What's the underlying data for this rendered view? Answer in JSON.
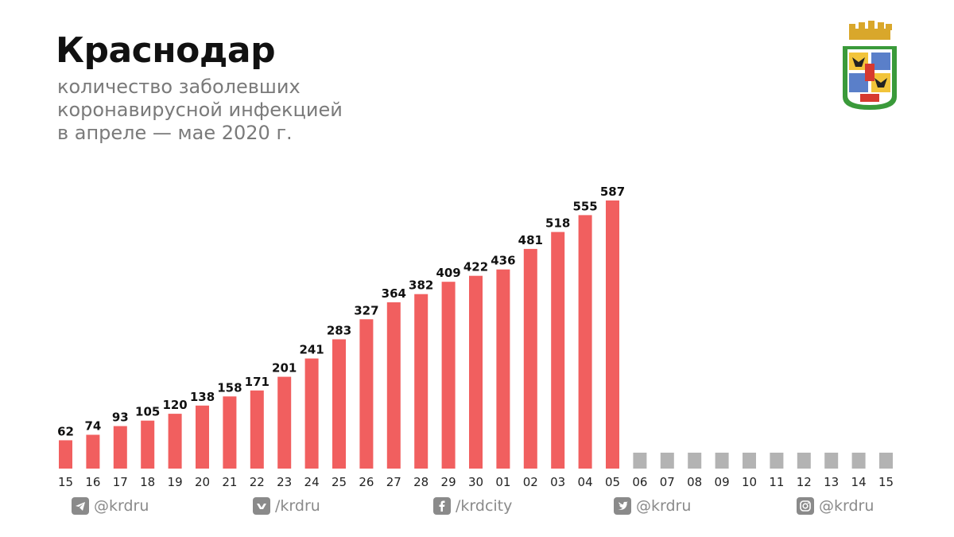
{
  "header": {
    "title": "Краснодар",
    "subtitle_lines": [
      "количество заболевших",
      "коронавирусной инфекцией",
      "в апреле — мае 2020 г."
    ]
  },
  "colors": {
    "bar": "#f15f5f",
    "future_bar": "#b3b3b3",
    "text": "#111111",
    "muted": "#8a8a8a"
  },
  "chart_data": {
    "type": "bar",
    "categories": [
      "15",
      "16",
      "17",
      "18",
      "19",
      "20",
      "21",
      "22",
      "23",
      "24",
      "25",
      "26",
      "27",
      "28",
      "29",
      "30",
      "01",
      "02",
      "03",
      "04",
      "05",
      "06",
      "07",
      "08",
      "09",
      "10",
      "11",
      "12",
      "13",
      "14",
      "15"
    ],
    "values": [
      62,
      74,
      93,
      105,
      120,
      138,
      158,
      171,
      201,
      241,
      283,
      327,
      364,
      382,
      409,
      422,
      436,
      481,
      518,
      555,
      587,
      null,
      null,
      null,
      null,
      null,
      null,
      null,
      null,
      null,
      null
    ],
    "ylim": [
      0,
      587
    ],
    "grid": false
  },
  "socials": [
    {
      "icon": "telegram-icon",
      "label": "@krdru"
    },
    {
      "icon": "vk-icon",
      "label": "/krdru"
    },
    {
      "icon": "facebook-icon",
      "label": "/krdcity"
    },
    {
      "icon": "twitter-icon",
      "label": "@krdru"
    },
    {
      "icon": "instagram-icon",
      "label": "@krdru"
    }
  ]
}
